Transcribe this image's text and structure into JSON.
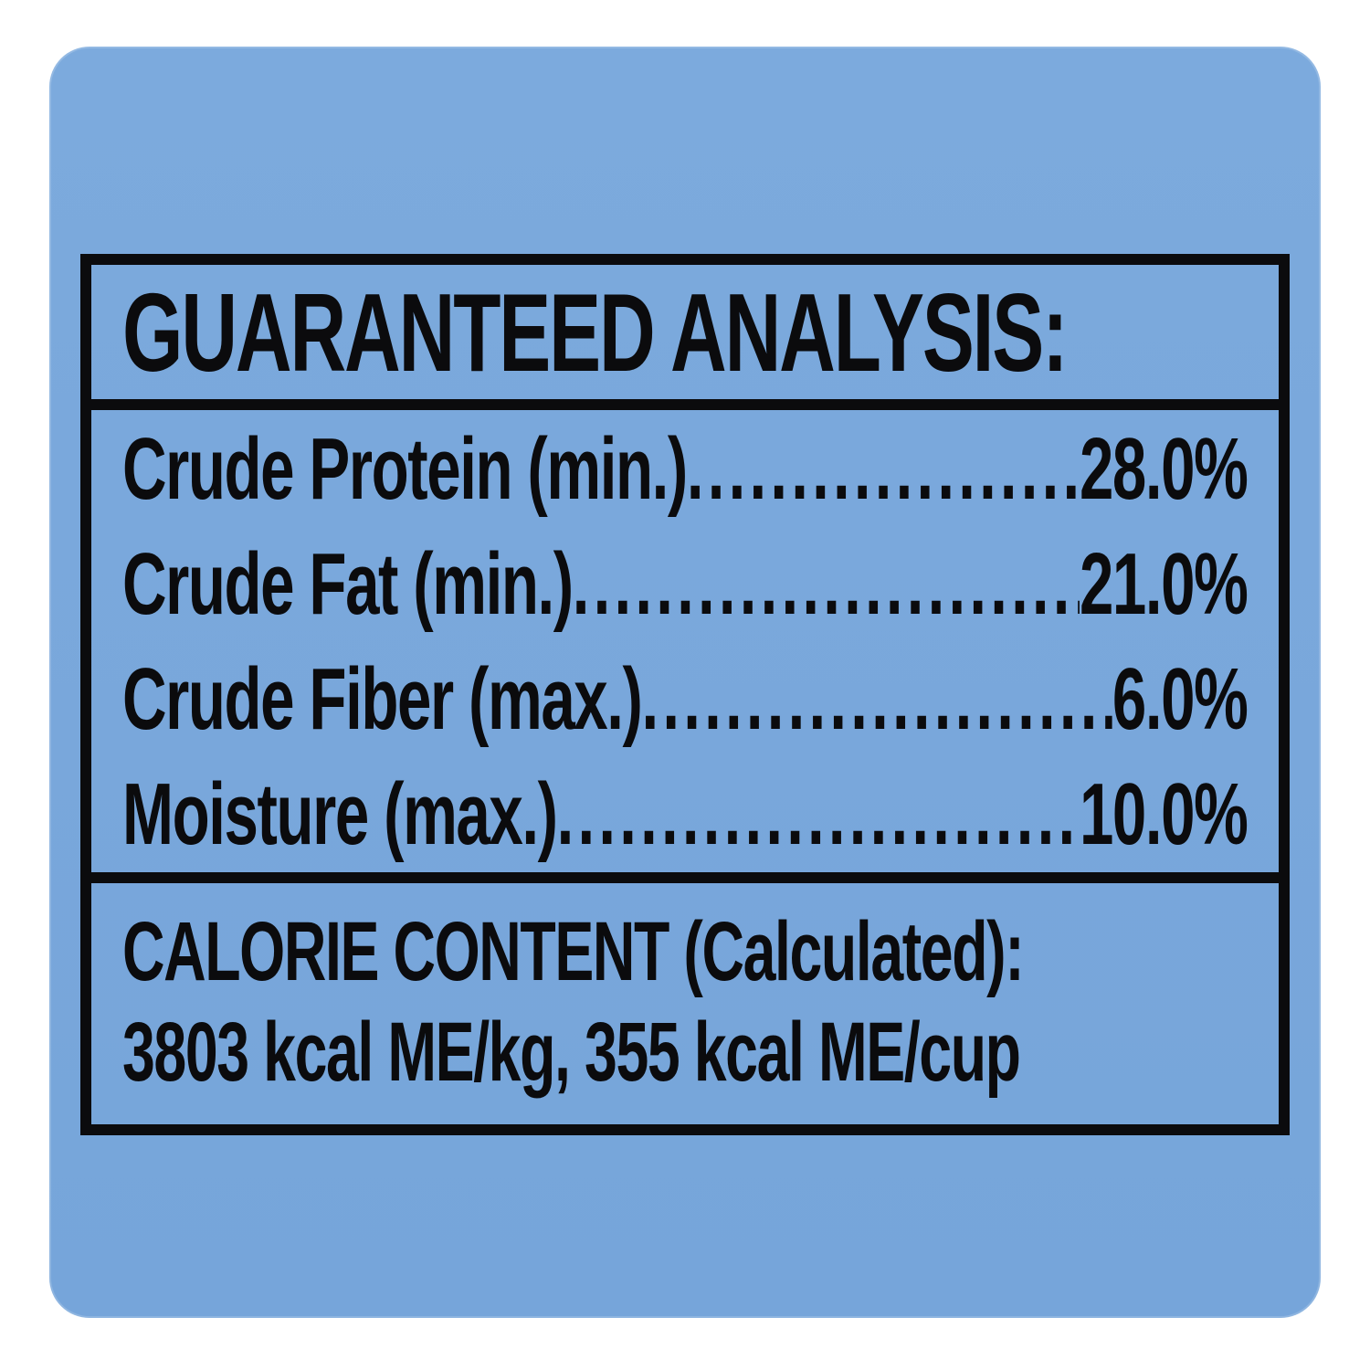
{
  "analysis": {
    "title": "GUARANTEED ANALYSIS:",
    "rows": [
      {
        "label": "Crude Protein (min.)",
        "value": "28.0%"
      },
      {
        "label": "Crude Fat (min.)",
        "value": "21.0%"
      },
      {
        "label": "Crude Fiber (max.)",
        "value": "6.0%"
      },
      {
        "label": "Moisture (max.)",
        "value": "10.0%"
      }
    ],
    "calorie": {
      "title": "CALORIE CONTENT (Calculated):",
      "values": "3803 kcal ME/kg, 355 kcal ME/cup"
    }
  },
  "colors": {
    "background_top": "#2e55a8",
    "background_bottom": "#b7c9ec",
    "panel": "#79a7db",
    "border": "#0b0b0d",
    "text": "#0b0b0d"
  }
}
